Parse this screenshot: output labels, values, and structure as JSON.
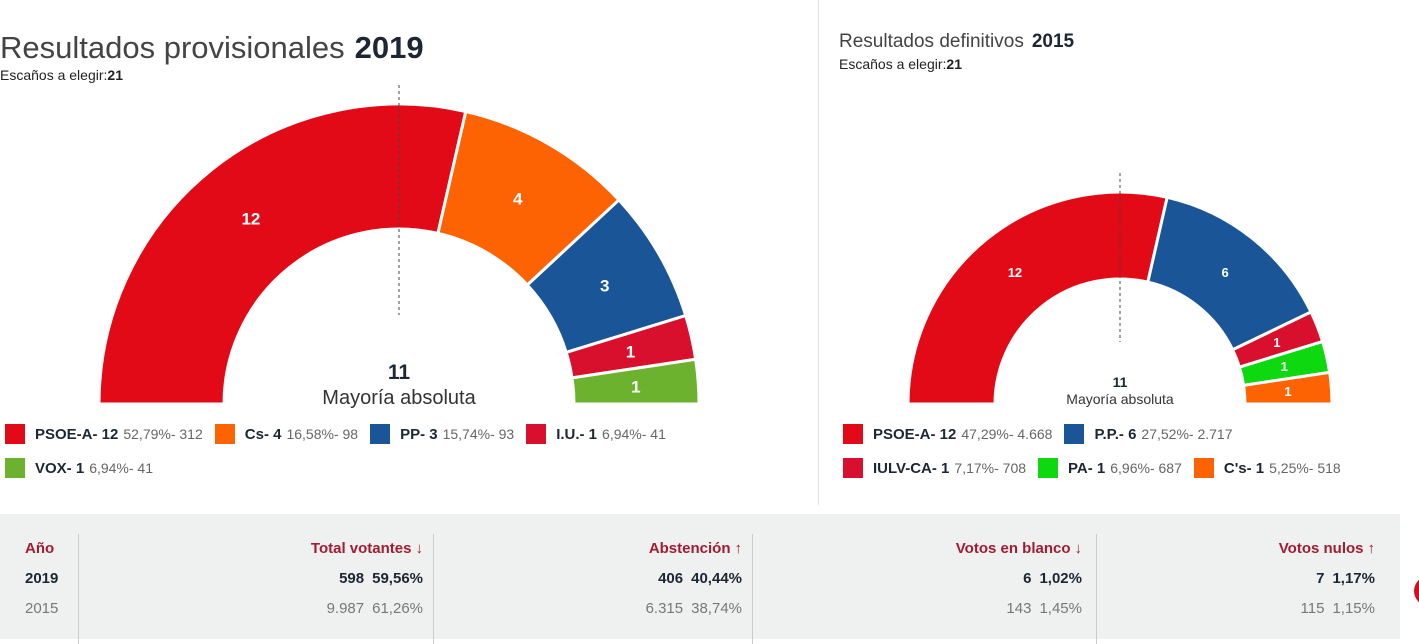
{
  "panel_2019": {
    "title": "Resultados provisionales",
    "year": "2019",
    "seats_label": "Escaños a elegir:",
    "seats_value": "21",
    "majority_value": "11",
    "majority_label": "Mayoría absoluta"
  },
  "panel_2015": {
    "title": "Resultados definitivos",
    "year": "2015",
    "seats_label": "Escaños a elegir:",
    "seats_value": "21",
    "majority_value": "11",
    "majority_label": "Mayoría absoluta"
  },
  "chart_data": [
    {
      "type": "pie",
      "subtype": "parliament-half-donut",
      "title": "Resultados provisionales 2019",
      "total": 21,
      "series": [
        {
          "name": "PSOE-A",
          "seats": 12,
          "pct": "52,79%",
          "votes": "312",
          "color": "#e20a17"
        },
        {
          "name": "Cs",
          "seats": 4,
          "pct": "16,58%",
          "votes": "98",
          "color": "#fe6303"
        },
        {
          "name": "PP",
          "seats": 3,
          "pct": "15,74%",
          "votes": "93",
          "color": "#1a5697"
        },
        {
          "name": "I.U.",
          "seats": 1,
          "pct": "6,94%",
          "votes": "41",
          "color": "#d90f2e"
        },
        {
          "name": "VOX",
          "seats": 1,
          "pct": "6,94%",
          "votes": "41",
          "color": "#6db22e"
        }
      ]
    },
    {
      "type": "pie",
      "subtype": "parliament-half-donut",
      "title": "Resultados definitivos 2015",
      "total": 21,
      "series": [
        {
          "name": "PSOE-A",
          "seats": 12,
          "pct": "47,29%",
          "votes": "4.668",
          "color": "#e20a17"
        },
        {
          "name": "P.P.",
          "seats": 6,
          "pct": "27,52%",
          "votes": "2.717",
          "color": "#1a5697"
        },
        {
          "name": "IULV-CA",
          "seats": 1,
          "pct": "7,17%",
          "votes": "708",
          "color": "#d90f2e"
        },
        {
          "name": "PA",
          "seats": 1,
          "pct": "6,96%",
          "votes": "687",
          "color": "#0ed80f"
        },
        {
          "name": "C's",
          "seats": 1,
          "pct": "5,25%",
          "votes": "518",
          "color": "#fe6303"
        }
      ]
    }
  ],
  "stats_table": {
    "headers": {
      "year": "Año",
      "voters": "Total votantes",
      "abstention": "Abstención",
      "blank": "Votos en blanco",
      "null": "Votos nulos"
    },
    "arrows": {
      "voters": "↓",
      "abstention": "↑",
      "blank": "↓",
      "null": "↑"
    },
    "rows": [
      {
        "year": "2019",
        "voters": "598",
        "voters_pct": "59,56%",
        "abstention": "406",
        "abstention_pct": "40,44%",
        "blank": "6",
        "blank_pct": "1,02%",
        "null": "7",
        "null_pct": "1,17%"
      },
      {
        "year": "2015",
        "voters": "9.987",
        "voters_pct": "61,26%",
        "abstention": "6.315",
        "abstention_pct": "38,74%",
        "blank": "143",
        "blank_pct": "1,45%",
        "null": "115",
        "null_pct": "1,15%"
      }
    ]
  }
}
